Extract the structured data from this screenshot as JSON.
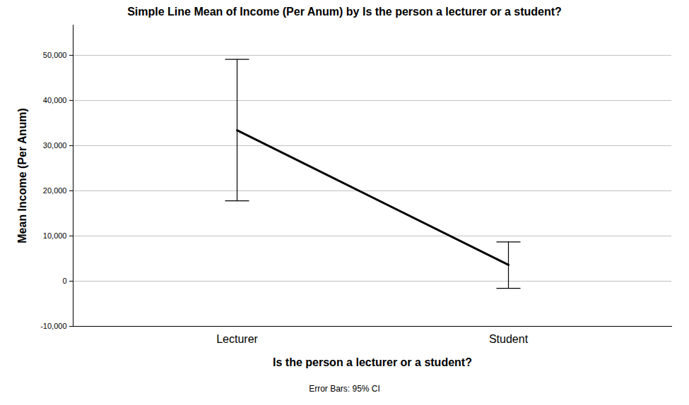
{
  "chart_data": {
    "type": "line",
    "title": "Simple Line Mean of Income (Per Anum) by Is the person a lecturer or a student?",
    "x_label": "Is the person a lecturer or a student?",
    "y_label": "Mean Income (Per Anum)",
    "caption": "Error Bars: 95% CI",
    "categories": [
      "Lecturer",
      "Student"
    ],
    "values": [
      33400,
      3600
    ],
    "ci_low": [
      17800,
      -1600
    ],
    "ci_high": [
      49100,
      8700
    ],
    "color": "#000000",
    "ylim": [
      -10000,
      56700
    ],
    "yticks": [
      {
        "value": -10000,
        "label": "-10,000"
      },
      0,
      {
        "value": 10000,
        "label": "10,000"
      },
      {
        "value": 20000,
        "label": "20,000"
      },
      {
        "value": 30000,
        "label": "30,000"
      },
      {
        "value": 40000,
        "label": "40,000"
      },
      {
        "value": 50000,
        "label": "50,000"
      }
    ],
    "grid": true
  }
}
